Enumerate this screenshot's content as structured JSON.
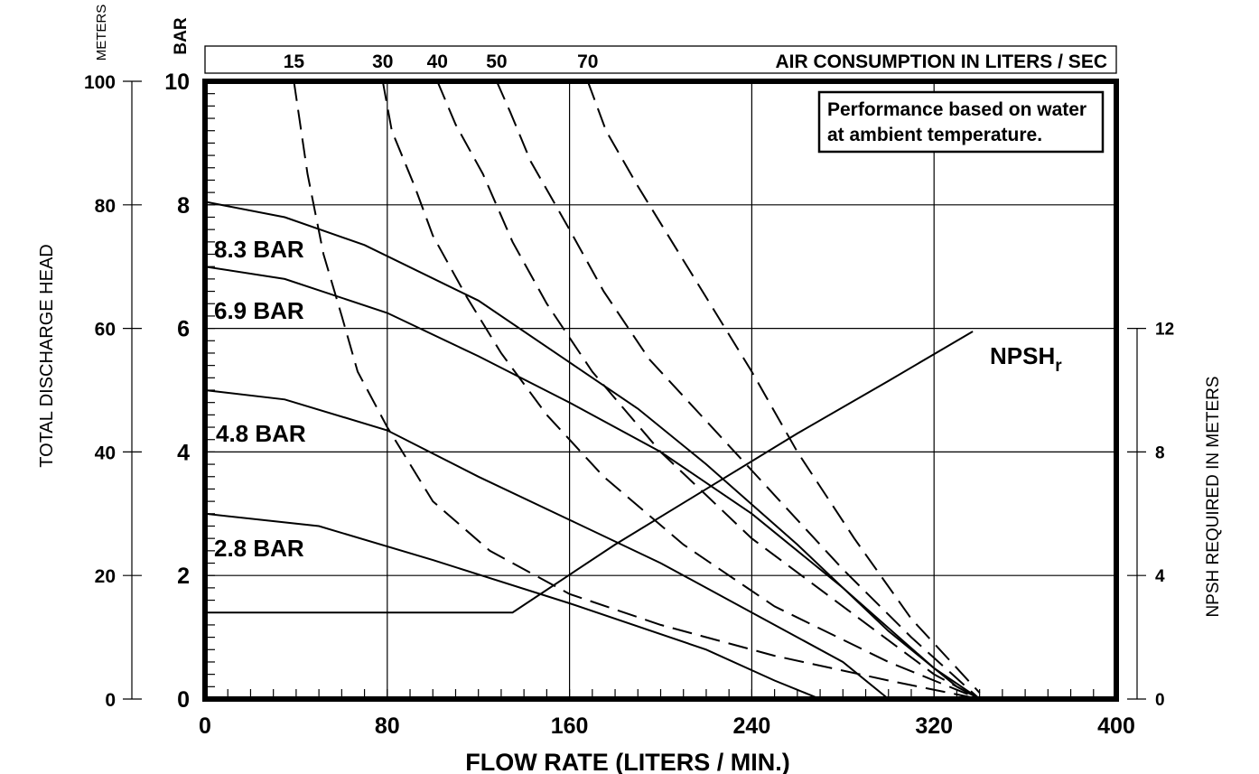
{
  "chart_data": {
    "type": "line",
    "xlabel": "FLOW RATE (LITERS / MIN.)",
    "x_ticks": [
      0,
      80,
      160,
      240,
      320,
      400
    ],
    "xlim": [
      0,
      400
    ],
    "left_axis_bar": {
      "label": "BAR",
      "ticks": [
        0,
        2,
        4,
        6,
        8,
        10
      ],
      "ylim": [
        0,
        10
      ]
    },
    "left_axis_meters": {
      "unit_label": "METERS",
      "label": "TOTAL DISCHARGE HEAD",
      "ticks": [
        0,
        20,
        40,
        60,
        80,
        100
      ],
      "ylim": [
        0,
        100
      ]
    },
    "right_axis": {
      "label": "NPSH REQUIRED IN METERS",
      "ticks": [
        0,
        4,
        8,
        12
      ],
      "ylim": [
        0,
        12
      ],
      "ylim_span": [
        0,
        20
      ]
    },
    "air_scale": {
      "label": "AIR CONSUMPTION IN LITERS / SEC",
      "ticks": [
        "15",
        "30",
        "40",
        "50",
        "70"
      ]
    },
    "note": [
      "Performance based on water",
      "at ambient temperature."
    ],
    "pressure_curves": [
      {
        "label": "8.3 BAR",
        "points": [
          [
            0,
            80.5
          ],
          [
            35,
            78
          ],
          [
            70,
            73.5
          ],
          [
            120,
            64.5
          ],
          [
            160,
            54.5
          ],
          [
            190,
            47
          ],
          [
            220,
            38
          ],
          [
            260,
            25
          ],
          [
            300,
            11
          ],
          [
            330,
            2
          ],
          [
            340,
            0
          ]
        ]
      },
      {
        "label": "6.9 BAR",
        "points": [
          [
            0,
            70
          ],
          [
            35,
            68
          ],
          [
            80,
            62.5
          ],
          [
            120,
            55.5
          ],
          [
            160,
            48
          ],
          [
            200,
            40
          ],
          [
            240,
            30
          ],
          [
            280,
            18
          ],
          [
            320,
            5
          ],
          [
            340,
            0
          ]
        ]
      },
      {
        "label": "4.8 BAR",
        "points": [
          [
            0,
            50
          ],
          [
            35,
            48.5
          ],
          [
            80,
            43.5
          ],
          [
            120,
            36
          ],
          [
            160,
            29
          ],
          [
            200,
            22
          ],
          [
            240,
            14
          ],
          [
            280,
            6
          ],
          [
            300,
            0
          ]
        ]
      },
      {
        "label": "2.8 BAR",
        "points": [
          [
            0,
            30
          ],
          [
            50,
            28
          ],
          [
            100,
            22.5
          ],
          [
            160,
            15.5
          ],
          [
            220,
            8
          ],
          [
            250,
            3
          ],
          [
            270,
            0
          ]
        ]
      }
    ],
    "air_curves": [
      {
        "label": "15",
        "points": [
          [
            39,
            100
          ],
          [
            45,
            85
          ],
          [
            52,
            72
          ],
          [
            60,
            62
          ],
          [
            67,
            53
          ],
          [
            80,
            44
          ],
          [
            100,
            32
          ],
          [
            125,
            24
          ],
          [
            160,
            17
          ],
          [
            200,
            12
          ],
          [
            250,
            7
          ],
          [
            300,
            3
          ],
          [
            340,
            0
          ]
        ]
      },
      {
        "label": "30",
        "points": [
          [
            78,
            100
          ],
          [
            82,
            92
          ],
          [
            92,
            83
          ],
          [
            100,
            75
          ],
          [
            115,
            65
          ],
          [
            130,
            56
          ],
          [
            150,
            46
          ],
          [
            175,
            36
          ],
          [
            210,
            25
          ],
          [
            250,
            15
          ],
          [
            300,
            6
          ],
          [
            340,
            0
          ]
        ]
      },
      {
        "label": "40",
        "points": [
          [
            102,
            100
          ],
          [
            110,
            93
          ],
          [
            122,
            85
          ],
          [
            135,
            74
          ],
          [
            150,
            64
          ],
          [
            170,
            53
          ],
          [
            200,
            40
          ],
          [
            240,
            26
          ],
          [
            280,
            15
          ],
          [
            320,
            4
          ],
          [
            340,
            0
          ]
        ]
      },
      {
        "label": "50",
        "points": [
          [
            128,
            100
          ],
          [
            134,
            95
          ],
          [
            143,
            87
          ],
          [
            160,
            76
          ],
          [
            175,
            66
          ],
          [
            195,
            55
          ],
          [
            220,
            45
          ],
          [
            250,
            33
          ],
          [
            280,
            21
          ],
          [
            310,
            10
          ],
          [
            340,
            0
          ]
        ]
      },
      {
        "label": "70",
        "points": [
          [
            168,
            100
          ],
          [
            176,
            92
          ],
          [
            190,
            83
          ],
          [
            205,
            74
          ],
          [
            220,
            65
          ],
          [
            240,
            53
          ],
          [
            260,
            40
          ],
          [
            285,
            26
          ],
          [
            310,
            13
          ],
          [
            340,
            1
          ]
        ]
      }
    ],
    "npshr_curve": {
      "label": "NPSH",
      "subscript": "r",
      "points": [
        [
          0,
          2.8
        ],
        [
          135,
          2.8
        ],
        [
          180,
          5
        ],
        [
          260,
          8.6
        ],
        [
          300,
          10.3
        ],
        [
          337,
          11.9
        ]
      ]
    }
  }
}
